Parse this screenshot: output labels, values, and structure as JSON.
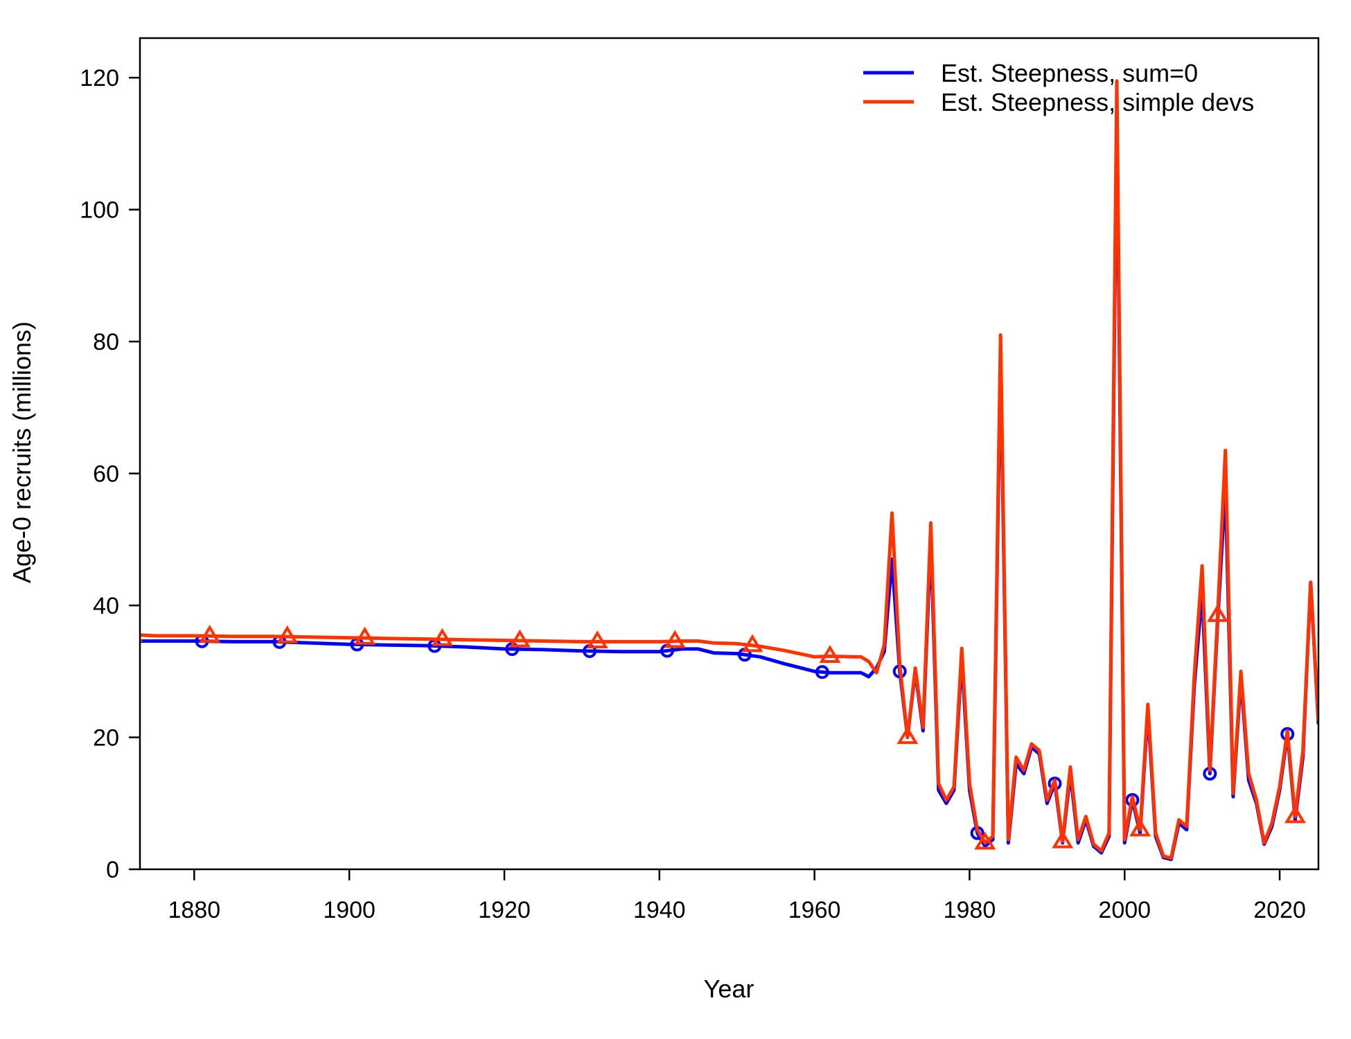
{
  "chart_data": {
    "type": "line",
    "title": "",
    "xlabel": "Year",
    "ylabel": "Age-0 recruits (millions)",
    "xlim": [
      1873,
      2025
    ],
    "ylim": [
      0,
      126
    ],
    "x_ticks": [
      1880,
      1900,
      1920,
      1940,
      1960,
      1980,
      2000,
      2020
    ],
    "y_ticks": [
      0,
      20,
      40,
      60,
      80,
      100,
      120
    ],
    "grid": false,
    "legend_position": "top-right",
    "series": [
      {
        "name": "Est. Steepness, sum=0",
        "color": "#0000ff",
        "marker": "circle",
        "marker_years": [
          1871,
          1881,
          1891,
          1901,
          1911,
          1921,
          1931,
          1941,
          1951,
          1961,
          1971,
          1981,
          1991,
          2001,
          2011,
          2021
        ],
        "points": [
          [
            1873,
            34.6
          ],
          [
            1875,
            34.6
          ],
          [
            1880,
            34.6
          ],
          [
            1885,
            34.5
          ],
          [
            1890,
            34.5
          ],
          [
            1895,
            34.3
          ],
          [
            1900,
            34.1
          ],
          [
            1905,
            34.0
          ],
          [
            1910,
            33.9
          ],
          [
            1915,
            33.7
          ],
          [
            1920,
            33.4
          ],
          [
            1925,
            33.3
          ],
          [
            1930,
            33.1
          ],
          [
            1935,
            33.0
          ],
          [
            1940,
            33.0
          ],
          [
            1943,
            33.4
          ],
          [
            1945,
            33.4
          ],
          [
            1947,
            32.8
          ],
          [
            1950,
            32.7
          ],
          [
            1953,
            32.2
          ],
          [
            1956,
            31.2
          ],
          [
            1958,
            30.6
          ],
          [
            1960,
            30.0
          ],
          [
            1962,
            29.8
          ],
          [
            1965,
            29.8
          ],
          [
            1966,
            29.8
          ],
          [
            1967,
            29.2
          ],
          [
            1968,
            30.5
          ],
          [
            1969,
            33.0
          ],
          [
            1970,
            47.0
          ],
          [
            1971,
            30.0
          ],
          [
            1972,
            20.0
          ],
          [
            1973,
            30.0
          ],
          [
            1974,
            21.0
          ],
          [
            1975,
            50.0
          ],
          [
            1976,
            12.0
          ],
          [
            1977,
            10.0
          ],
          [
            1978,
            12.0
          ],
          [
            1979,
            32.0
          ],
          [
            1980,
            12.0
          ],
          [
            1981,
            5.5
          ],
          [
            1982,
            3.5
          ],
          [
            1983,
            4.5
          ],
          [
            1984,
            78.0
          ],
          [
            1985,
            4.0
          ],
          [
            1986,
            16.0
          ],
          [
            1987,
            14.5
          ],
          [
            1988,
            18.5
          ],
          [
            1989,
            17.5
          ],
          [
            1990,
            10.0
          ],
          [
            1991,
            13.0
          ],
          [
            1992,
            4.0
          ],
          [
            1993,
            14.5
          ],
          [
            1994,
            4.0
          ],
          [
            1995,
            7.5
          ],
          [
            1996,
            3.5
          ],
          [
            1997,
            2.5
          ],
          [
            1998,
            5.0
          ],
          [
            1999,
            115.0
          ],
          [
            2000,
            4.0
          ],
          [
            2001,
            10.5
          ],
          [
            2002,
            5.5
          ],
          [
            2003,
            24.0
          ],
          [
            2004,
            5.0
          ],
          [
            2005,
            1.8
          ],
          [
            2006,
            1.5
          ],
          [
            2007,
            7.0
          ],
          [
            2008,
            6.0
          ],
          [
            2009,
            28.0
          ],
          [
            2010,
            42.0
          ],
          [
            2011,
            14.5
          ],
          [
            2012,
            37.5
          ],
          [
            2013,
            58.0
          ],
          [
            2014,
            11.0
          ],
          [
            2015,
            29.0
          ],
          [
            2016,
            13.5
          ],
          [
            2017,
            10.0
          ],
          [
            2018,
            3.8
          ],
          [
            2019,
            6.5
          ],
          [
            2020,
            12.0
          ],
          [
            2021,
            20.5
          ],
          [
            2022,
            7.5
          ],
          [
            2023,
            17.0
          ],
          [
            2024,
            43.5
          ],
          [
            2025,
            22.0
          ]
        ]
      },
      {
        "name": "Est. Steepness, simple devs",
        "color": "#ff3300",
        "marker": "triangle",
        "marker_years": [
          1872,
          1882,
          1892,
          1902,
          1912,
          1922,
          1932,
          1942,
          1952,
          1962,
          1972,
          1982,
          1992,
          2002,
          2012,
          2022
        ],
        "points": [
          [
            1873,
            35.5
          ],
          [
            1875,
            35.4
          ],
          [
            1880,
            35.4
          ],
          [
            1885,
            35.3
          ],
          [
            1890,
            35.3
          ],
          [
            1895,
            35.2
          ],
          [
            1900,
            35.1
          ],
          [
            1905,
            35.0
          ],
          [
            1910,
            34.9
          ],
          [
            1915,
            34.8
          ],
          [
            1920,
            34.7
          ],
          [
            1925,
            34.6
          ],
          [
            1930,
            34.5
          ],
          [
            1935,
            34.5
          ],
          [
            1940,
            34.5
          ],
          [
            1943,
            34.6
          ],
          [
            1945,
            34.6
          ],
          [
            1947,
            34.3
          ],
          [
            1950,
            34.2
          ],
          [
            1953,
            33.8
          ],
          [
            1956,
            33.2
          ],
          [
            1958,
            32.7
          ],
          [
            1960,
            32.2
          ],
          [
            1962,
            32.3
          ],
          [
            1965,
            32.2
          ],
          [
            1966,
            32.2
          ],
          [
            1967,
            31.5
          ],
          [
            1968,
            29.8
          ],
          [
            1969,
            34.0
          ],
          [
            1970,
            54.0
          ],
          [
            1971,
            31.0
          ],
          [
            1972,
            20.0
          ],
          [
            1973,
            30.5
          ],
          [
            1974,
            21.5
          ],
          [
            1975,
            52.5
          ],
          [
            1976,
            13.0
          ],
          [
            1977,
            10.5
          ],
          [
            1978,
            12.5
          ],
          [
            1979,
            33.5
          ],
          [
            1980,
            13.0
          ],
          [
            1981,
            6.0
          ],
          [
            1982,
            4.0
          ],
          [
            1983,
            5.0
          ],
          [
            1984,
            81.0
          ],
          [
            1985,
            4.5
          ],
          [
            1986,
            17.0
          ],
          [
            1987,
            15.0
          ],
          [
            1988,
            19.0
          ],
          [
            1989,
            18.0
          ],
          [
            1990,
            10.5
          ],
          [
            1991,
            13.5
          ],
          [
            1992,
            4.2
          ],
          [
            1993,
            15.5
          ],
          [
            1994,
            4.5
          ],
          [
            1995,
            8.0
          ],
          [
            1996,
            3.8
          ],
          [
            1997,
            2.8
          ],
          [
            1998,
            5.5
          ],
          [
            1999,
            119.5
          ],
          [
            2000,
            4.5
          ],
          [
            2001,
            11.0
          ],
          [
            2002,
            6.0
          ],
          [
            2003,
            25.0
          ],
          [
            2004,
            5.5
          ],
          [
            2005,
            2.0
          ],
          [
            2006,
            1.7
          ],
          [
            2007,
            7.5
          ],
          [
            2008,
            6.5
          ],
          [
            2009,
            29.5
          ],
          [
            2010,
            46.0
          ],
          [
            2011,
            15.0
          ],
          [
            2012,
            38.5
          ],
          [
            2013,
            63.5
          ],
          [
            2014,
            11.5
          ],
          [
            2015,
            30.0
          ],
          [
            2016,
            14.5
          ],
          [
            2017,
            10.5
          ],
          [
            2018,
            4.0
          ],
          [
            2019,
            7.0
          ],
          [
            2020,
            12.5
          ],
          [
            2021,
            21.0
          ],
          [
            2022,
            8.0
          ],
          [
            2023,
            18.0
          ],
          [
            2024,
            43.5
          ],
          [
            2025,
            22.5
          ]
        ]
      }
    ]
  }
}
